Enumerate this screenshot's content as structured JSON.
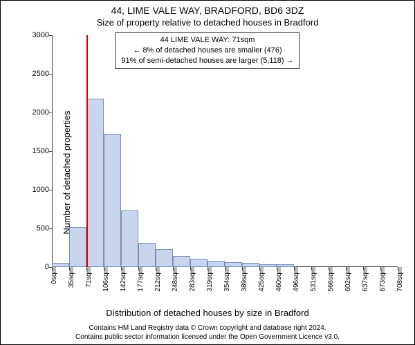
{
  "title_main": "44, LIME VALE WAY, BRADFORD, BD6 3DZ",
  "title_sub": "Size of property relative to detached houses in Bradford",
  "info_box": {
    "line1": "44 LIME VALE WAY: 71sqm",
    "line2": "← 8% of detached houses are smaller (476)",
    "line3": "91% of semi-detached houses are larger (5,118) →"
  },
  "y_label": "Number of detached properties",
  "x_label": "Distribution of detached houses by size in Bradford",
  "attribution": {
    "line1": "Contains HM Land Registry data © Crown copyright and database right 2024.",
    "line2": "Contains public sector information licensed under the Open Government Licence v3.0."
  },
  "chart": {
    "type": "histogram",
    "ylim": [
      0,
      3000
    ],
    "yticks": [
      0,
      500,
      1000,
      1500,
      2000,
      2500,
      3000
    ],
    "categories": [
      "0sqm",
      "35sqm",
      "71sqm",
      "106sqm",
      "142sqm",
      "177sqm",
      "212sqm",
      "248sqm",
      "283sqm",
      "319sqm",
      "354sqm",
      "389sqm",
      "425sqm",
      "460sqm",
      "496sqm",
      "531sqm",
      "566sqm",
      "602sqm",
      "637sqm",
      "673sqm",
      "708sqm"
    ],
    "values": [
      50,
      520,
      2180,
      1720,
      730,
      310,
      230,
      140,
      110,
      80,
      60,
      50,
      40,
      40,
      0,
      0,
      0,
      0,
      0,
      0
    ],
    "reference_value": 71,
    "bar_fill": "#c9d5ec",
    "bar_stroke": "#7a8db5",
    "ref_color": "#e00000",
    "background_color": "#ffffff",
    "axis_color": "#444444",
    "tick_fontsize": 10,
    "label_fontsize": 13,
    "title_fontsize": 14,
    "bar_width_ratio": 1.0
  }
}
